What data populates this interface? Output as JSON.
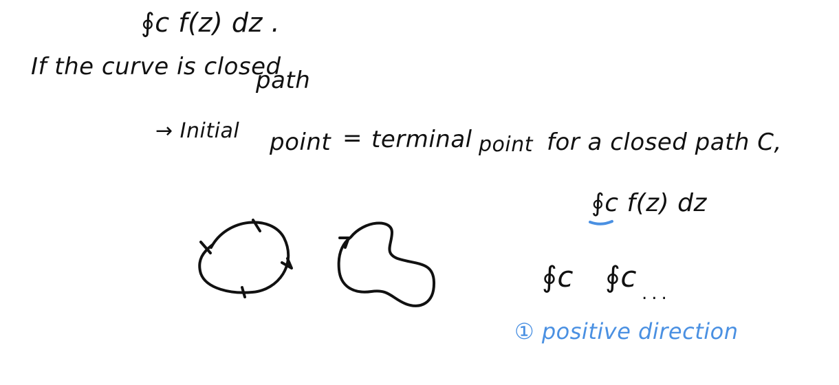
{
  "note": {
    "integral_top": "∮c f(z) dz .",
    "closed_curve_line": "If the curve is closed",
    "path_word": "path",
    "initial_prefix": "→ Initial",
    "point_word": "point",
    "equals_sign": "=",
    "terminal_word": "terminal",
    "terminal_point_word": "point",
    "for_closed_path": "for a closed path C,",
    "integral_mid": "∮c f(z) dz",
    "integral_c1": "∮c",
    "integral_c2": "∮c",
    "dots": "...",
    "positive_direction": "① positive direction"
  },
  "colors": {
    "ink": "#111111",
    "accent": "#4a90e2",
    "background": "#ffffff"
  },
  "icons": {
    "circle_curve": "closed-circle-arrow-icon",
    "blob_curve": "closed-blob-arrow-icon"
  }
}
